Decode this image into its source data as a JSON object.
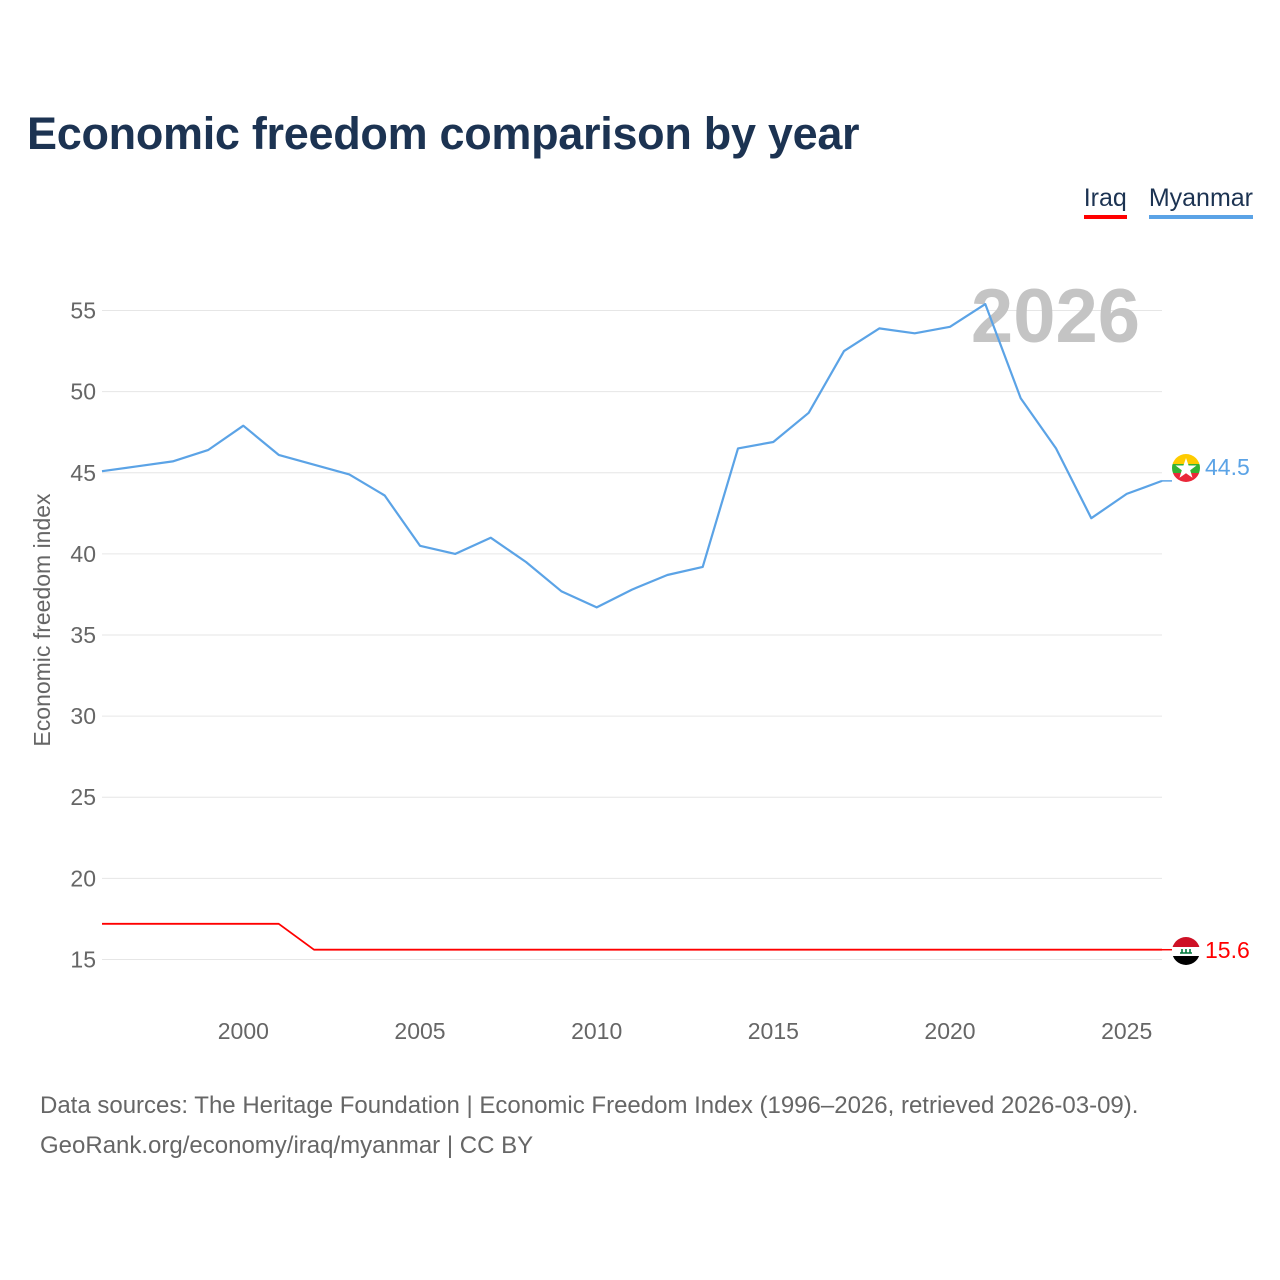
{
  "chart_data": {
    "type": "line",
    "title": "Economic freedom comparison by year",
    "ylabel": "Economic freedom index",
    "xlabel": "",
    "xlim": [
      1996,
      2026
    ],
    "ylim": [
      12.5,
      57.5
    ],
    "yticks": [
      15,
      20,
      25,
      30,
      35,
      40,
      45,
      50,
      55
    ],
    "xticks": [
      2000,
      2005,
      2010,
      2015,
      2020,
      2025
    ],
    "current_year_label": "2026",
    "legend": [
      "Iraq",
      "Myanmar"
    ],
    "series": [
      {
        "name": "Iraq",
        "color": "#ff0000",
        "end_label": "15.6",
        "flag": "iraq-flag-icon",
        "points": [
          [
            1996,
            17.2
          ],
          [
            2001,
            17.2
          ],
          [
            2002,
            15.6
          ],
          [
            2026,
            15.6
          ]
        ]
      },
      {
        "name": "Myanmar",
        "color": "#5ba3e6",
        "end_label": "44.5",
        "flag": "myanmar-flag-icon",
        "points": [
          [
            1996,
            45.1
          ],
          [
            1997,
            45.4
          ],
          [
            1998,
            45.7
          ],
          [
            1999,
            46.4
          ],
          [
            2000,
            47.9
          ],
          [
            2001,
            46.1
          ],
          [
            2002,
            45.5
          ],
          [
            2003,
            44.9
          ],
          [
            2004,
            43.6
          ],
          [
            2005,
            40.5
          ],
          [
            2006,
            40.0
          ],
          [
            2007,
            41.0
          ],
          [
            2008,
            39.5
          ],
          [
            2009,
            37.7
          ],
          [
            2010,
            36.7
          ],
          [
            2011,
            37.8
          ],
          [
            2012,
            38.7
          ],
          [
            2013,
            39.2
          ],
          [
            2014,
            46.5
          ],
          [
            2015,
            46.9
          ],
          [
            2016,
            48.7
          ],
          [
            2017,
            52.5
          ],
          [
            2018,
            53.9
          ],
          [
            2019,
            53.6
          ],
          [
            2020,
            54.0
          ],
          [
            2021,
            55.4
          ],
          [
            2022,
            49.6
          ],
          [
            2023,
            46.5
          ],
          [
            2024,
            42.2
          ],
          [
            2025,
            43.7
          ],
          [
            2026,
            44.5
          ]
        ]
      }
    ]
  },
  "footer": {
    "line1": "Data sources: The Heritage Foundation | Economic Freedom Index (1996–2026, retrieved 2026-03-09).",
    "line2": "GeoRank.org/economy/iraq/myanmar | CC BY"
  }
}
